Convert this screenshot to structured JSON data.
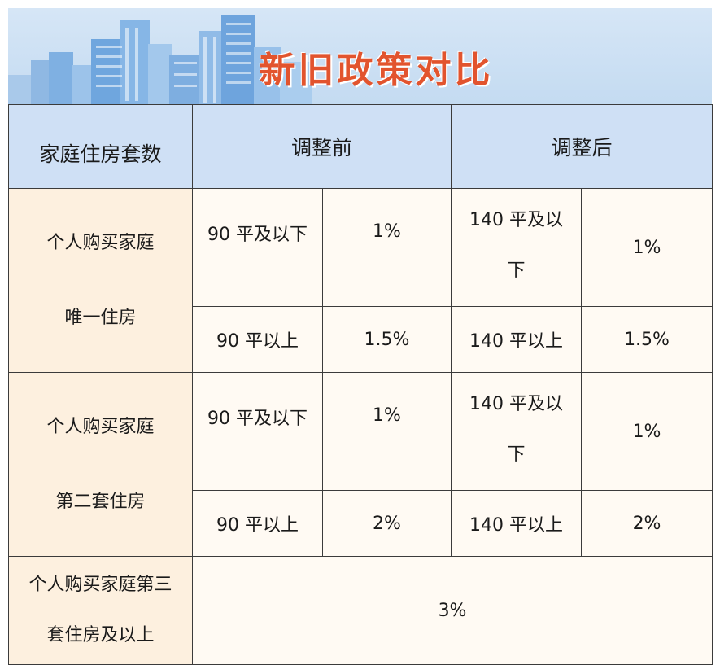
{
  "title": "新旧政策对比",
  "colors": {
    "title": "#e2542e",
    "header_bg": "#cfe0f5",
    "row_header_bg": "#fdf0df",
    "cell_bg": "#fffaf3",
    "banner_bg": "#d6e6f6"
  },
  "table": {
    "headers": [
      "家庭住房套数",
      "调整前",
      "调整后"
    ],
    "rows": [
      {
        "label_line1": "个人购买家庭",
        "label_line2": "唯一住房",
        "before": [
          {
            "area": "90 平及以下",
            "rate": "1%"
          },
          {
            "area": "90 平以上",
            "rate": "1.5%"
          }
        ],
        "after": [
          {
            "area_line1": "140 平及以",
            "area_line2": "下",
            "rate": "1%"
          },
          {
            "area": "140 平以上",
            "rate": "1.5%"
          }
        ]
      },
      {
        "label_line1": "个人购买家庭",
        "label_line2": "第二套住房",
        "before": [
          {
            "area": "90 平及以下",
            "rate": "1%"
          },
          {
            "area": "90 平以上",
            "rate": "2%"
          }
        ],
        "after": [
          {
            "area_line1": "140 平及以",
            "area_line2": "下",
            "rate": "1%"
          },
          {
            "area": "140 平以上",
            "rate": "2%"
          }
        ]
      }
    ],
    "third": {
      "label_line1": "个人购买家庭第三",
      "label_line2": "套住房及以上",
      "rate": "3%"
    }
  }
}
